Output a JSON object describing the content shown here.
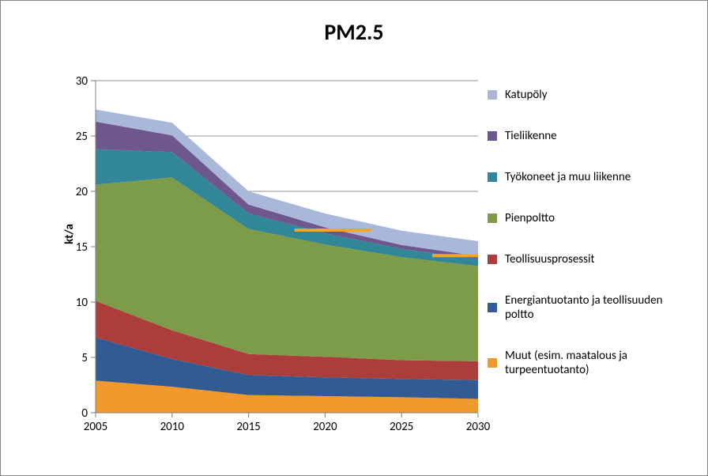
{
  "chart": {
    "type": "area-stacked",
    "title": "PM2.5",
    "title_fontsize": 28,
    "ylabel": "kt/a",
    "label_fontsize": 15,
    "background_color": "#ffffff",
    "border_color": "#868686",
    "grid_color": "#808080",
    "axis_color": "#808080",
    "tick_color": "#808080",
    "xlim": [
      2005,
      2030
    ],
    "xtick_step": 5,
    "xticks": [
      2005,
      2010,
      2015,
      2020,
      2025,
      2030
    ],
    "ylim": [
      0,
      30
    ],
    "ytick_step": 5,
    "yticks": [
      0,
      5,
      10,
      15,
      20,
      25,
      30
    ],
    "years": [
      2005,
      2010,
      2015,
      2020,
      2025,
      2030
    ],
    "series": [
      {
        "key": "muut",
        "label": "Muut (esim. maatalous ja turpeentuotanto)",
        "color": "#f0992c",
        "values": [
          2.9,
          2.35,
          1.6,
          1.5,
          1.4,
          1.25
        ]
      },
      {
        "key": "energia",
        "label": "Energiantuotanto ja teollisuuden poltto",
        "color": "#325b93",
        "values": [
          3.9,
          2.5,
          1.8,
          1.7,
          1.65,
          1.7
        ]
      },
      {
        "key": "teollisuus",
        "label": "Teollisuusprosessit",
        "color": "#ab3e3b",
        "values": [
          3.3,
          2.6,
          1.9,
          1.85,
          1.7,
          1.7
        ]
      },
      {
        "key": "pienpoltto",
        "label": "Pienpoltto",
        "color": "#7c9c4a",
        "values": [
          10.5,
          13.8,
          11.3,
          10.15,
          9.3,
          8.6
        ]
      },
      {
        "key": "tyokoneet",
        "label": "Työkoneet ja muu liikenne",
        "color": "#318697",
        "values": [
          3.2,
          2.3,
          1.4,
          1.0,
          0.75,
          0.6
        ]
      },
      {
        "key": "tieliikenne",
        "label": "Tieliikenne",
        "color": "#6e578d",
        "values": [
          2.5,
          1.5,
          0.8,
          0.55,
          0.35,
          0.3
        ]
      },
      {
        "key": "katupoly",
        "label": "Katupöly",
        "color": "#a9b8d9",
        "values": [
          1.1,
          1.15,
          1.2,
          1.25,
          1.3,
          1.35
        ]
      }
    ],
    "reference_lines": [
      {
        "y": 16.5,
        "x0": 2018,
        "x1": 2023,
        "color": "#f5a623",
        "width": 4
      },
      {
        "y": 14.2,
        "x0": 2027,
        "x1": 2030.5,
        "color": "#f5a623",
        "width": 4
      }
    ],
    "legend_order": [
      "katupoly",
      "tieliikenne",
      "tyokoneet",
      "pienpoltto",
      "teollisuus",
      "energia",
      "muut"
    ],
    "legend_fontsize": 15,
    "font_family": "Calibri, Arial, sans-serif"
  }
}
